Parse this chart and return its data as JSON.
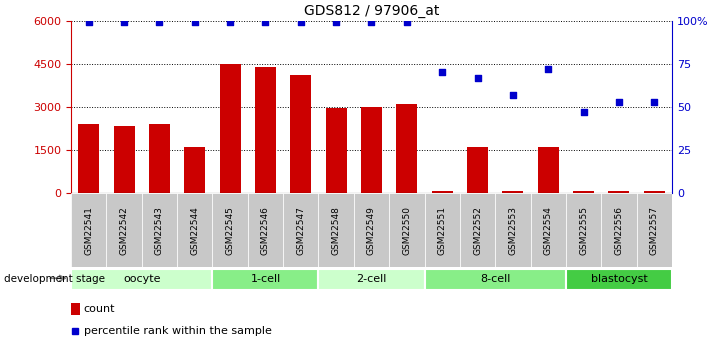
{
  "title": "GDS812 / 97906_at",
  "samples": [
    "GSM22541",
    "GSM22542",
    "GSM22543",
    "GSM22544",
    "GSM22545",
    "GSM22546",
    "GSM22547",
    "GSM22548",
    "GSM22549",
    "GSM22550",
    "GSM22551",
    "GSM22552",
    "GSM22553",
    "GSM22554",
    "GSM22555",
    "GSM22556",
    "GSM22557"
  ],
  "counts": [
    2400,
    2350,
    2400,
    1600,
    4500,
    4400,
    4100,
    2950,
    3000,
    3100,
    80,
    1600,
    80,
    1600,
    80,
    80,
    80
  ],
  "percentiles": [
    99,
    99,
    99,
    99,
    99,
    99,
    99,
    99,
    99,
    99,
    70,
    67,
    57,
    72,
    47,
    53,
    53
  ],
  "bar_color": "#CC0000",
  "dot_color": "#0000CC",
  "groups": [
    {
      "label": "oocyte",
      "start": 0,
      "end": 3,
      "color": "#ccffcc"
    },
    {
      "label": "1-cell",
      "start": 4,
      "end": 6,
      "color": "#88ee88"
    },
    {
      "label": "2-cell",
      "start": 7,
      "end": 9,
      "color": "#ccffcc"
    },
    {
      "label": "8-cell",
      "start": 10,
      "end": 13,
      "color": "#88ee88"
    },
    {
      "label": "blastocyst",
      "start": 14,
      "end": 16,
      "color": "#44cc44"
    }
  ],
  "ylim_left": [
    0,
    6000
  ],
  "ylim_right": [
    0,
    100
  ],
  "yticks_left": [
    0,
    1500,
    3000,
    4500,
    6000
  ],
  "yticks_right": [
    0,
    25,
    50,
    75,
    100
  ],
  "yticklabels_right": [
    "0",
    "25",
    "50",
    "75",
    "100%"
  ],
  "development_stage_label": "development stage",
  "legend_count_label": "count",
  "legend_pct_label": "percentile rank within the sample",
  "tick_bg_color": "#c8c8c8",
  "left_axis_color": "#CC0000",
  "right_axis_color": "#0000CC"
}
